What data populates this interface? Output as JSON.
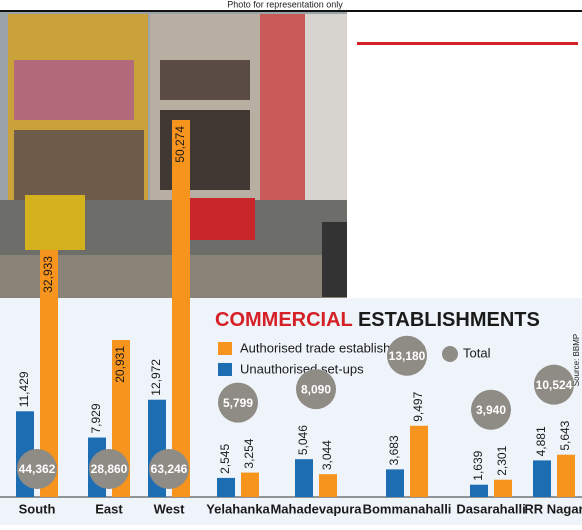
{
  "chart_data": {
    "type": "bar",
    "caption": "Photo for representation only",
    "title": {
      "highlight": "COMMERCIAL",
      "rest": "ESTABLISHMENTS"
    },
    "source": "Source: BBMP",
    "categories": [
      "South",
      "East",
      "West",
      "Yelahanka",
      "Mahadevapura",
      "Bommanahalli",
      "Dasarahalli",
      "RR Nagar"
    ],
    "series": [
      {
        "name": "Authorised trade establishments",
        "color": "#f7941d",
        "values": [
          32933,
          20931,
          50274,
          3254,
          3044,
          9497,
          2301,
          5643
        ],
        "value_labels": [
          "32,933",
          "20,931",
          "50,274",
          "3,254",
          "3,044",
          "9,497",
          "2,301",
          "5,643"
        ]
      },
      {
        "name": "Unauthorised set-ups",
        "color": "#1d6db3",
        "values": [
          11429,
          7929,
          12972,
          2545,
          5046,
          3683,
          1639,
          4881
        ],
        "value_labels": [
          "11,429",
          "7,929",
          "12,972",
          "2,545",
          "5,046",
          "3,683",
          "1,639",
          "4,881"
        ]
      },
      {
        "name": "Total",
        "color": "#8f8b85",
        "values": [
          44362,
          28860,
          63246,
          5799,
          8090,
          13180,
          3940,
          10524
        ],
        "value_labels": [
          "44,362",
          "28,860",
          "63,246",
          "5,799",
          "8,090",
          "13,180",
          "3,940",
          "10,524"
        ]
      }
    ]
  }
}
